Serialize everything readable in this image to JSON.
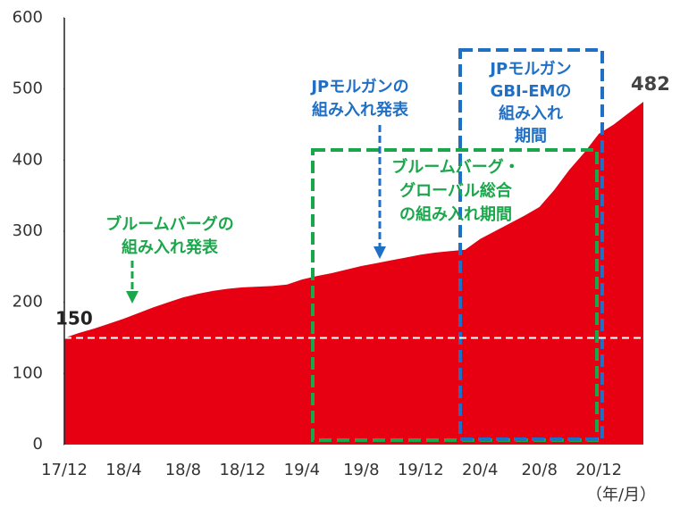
{
  "chart_data": {
    "type": "area",
    "categories": [
      "17/12",
      null,
      null,
      null,
      "18/4",
      null,
      null,
      null,
      "18/8",
      null,
      null,
      null,
      "18/12",
      null,
      null,
      null,
      "19/4",
      null,
      null,
      null,
      "19/8",
      null,
      null,
      null,
      "19/12",
      null,
      null,
      null,
      "20/4",
      null,
      null,
      null,
      "20/8",
      null,
      null,
      null,
      "20/12",
      null,
      null,
      null
    ],
    "values": [
      150,
      157,
      163,
      170,
      177,
      185,
      193,
      200,
      207,
      212,
      216,
      219,
      221,
      222,
      223,
      225,
      232,
      237,
      241,
      246,
      251,
      255,
      259,
      263,
      267,
      270,
      272,
      274,
      289,
      300,
      311,
      322,
      334,
      358,
      386,
      410,
      437,
      450,
      466,
      482
    ],
    "color": "#e60012",
    "ylim": [
      0,
      600
    ],
    "yticks": [
      0,
      100,
      200,
      300,
      400,
      500,
      600
    ],
    "x_unit": "（年/月）",
    "annotations": [
      {
        "lines": [
          "ブルームバーグの",
          "組み入れ発表"
        ],
        "color": "#1aa64a"
      },
      {
        "lines": [
          "JPモルガンの",
          "組み入れ発表"
        ],
        "color": "#1f6fc5"
      },
      {
        "lines": [
          "JPモルガン",
          "GBI-EMの",
          "組み入れ",
          "期間"
        ],
        "color": "#1f6fc5"
      },
      {
        "lines": [
          "ブルームバーグ・",
          "グローバル総合",
          "の組み入れ期間"
        ],
        "color": "#1aa64a"
      }
    ]
  }
}
